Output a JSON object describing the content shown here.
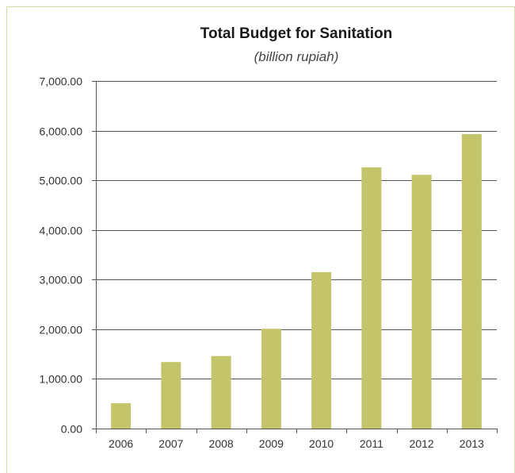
{
  "chart_data": {
    "type": "bar",
    "title": "Total Budget for Sanitation",
    "subtitle": "(billion rupiah)",
    "xlabel": "",
    "ylabel": "",
    "categories": [
      "2006",
      "2007",
      "2008",
      "2009",
      "2010",
      "2011",
      "2012",
      "2013"
    ],
    "values": [
      510,
      1340,
      1460,
      2010,
      3150,
      5260,
      5110,
      5930
    ],
    "ylim": [
      0,
      7000
    ],
    "yticks": [
      "0.00",
      "1,000.00",
      "2,000.00",
      "3,000.00",
      "4,000.00",
      "5,000.00",
      "6,000.00",
      "7,000.00"
    ],
    "grid": true,
    "legend": "none",
    "bar_color": "#c4c56a",
    "grid_color": "#555555",
    "border_color": "#d6dba6"
  }
}
